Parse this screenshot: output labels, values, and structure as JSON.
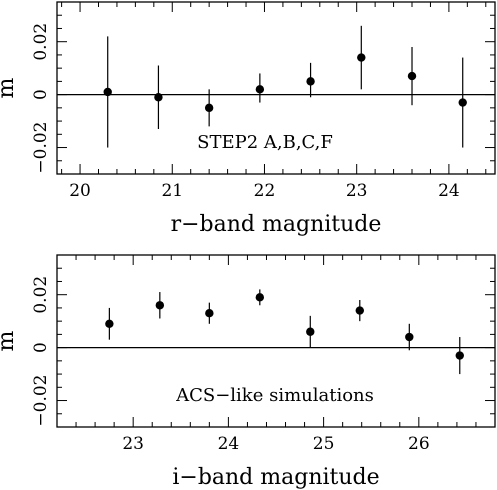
{
  "chart_data": [
    {
      "type": "scatter",
      "annotation": "STEP2 A,B,C,F",
      "xlabel": "r−band magnitude",
      "ylabel": "m",
      "xlim": [
        19.75,
        24.5
      ],
      "ylim": [
        -0.03,
        0.035
      ],
      "xticks": [
        20,
        21,
        22,
        23,
        24
      ],
      "yticks": [
        -0.02,
        0,
        0.02
      ],
      "ytick_labels": [
        "−0.02",
        "0",
        "0.02"
      ],
      "grid": false,
      "reference_line": 0,
      "points": [
        {
          "x": 20.3,
          "y": 0.001,
          "err_low": -0.02,
          "err_high": 0.022
        },
        {
          "x": 20.85,
          "y": -0.001,
          "err_low": -0.013,
          "err_high": 0.011
        },
        {
          "x": 21.4,
          "y": -0.005,
          "err_low": -0.012,
          "err_high": 0.002
        },
        {
          "x": 21.95,
          "y": 0.002,
          "err_low": -0.003,
          "err_high": 0.008
        },
        {
          "x": 22.5,
          "y": 0.005,
          "err_low": -0.001,
          "err_high": 0.012
        },
        {
          "x": 23.05,
          "y": 0.014,
          "err_low": 0.002,
          "err_high": 0.026
        },
        {
          "x": 23.6,
          "y": 0.007,
          "err_low": -0.004,
          "err_high": 0.018
        },
        {
          "x": 24.15,
          "y": -0.003,
          "err_low": -0.02,
          "err_high": 0.014
        }
      ]
    },
    {
      "type": "scatter",
      "annotation": "ACS−like simulations",
      "xlabel": "i−band magnitude",
      "ylabel": "m",
      "xlim": [
        22.2,
        26.8
      ],
      "ylim": [
        -0.03,
        0.035
      ],
      "xticks": [
        23,
        24,
        25,
        26
      ],
      "yticks": [
        -0.02,
        0,
        0.02
      ],
      "ytick_labels": [
        "−0.02",
        "0",
        "0.02"
      ],
      "grid": false,
      "reference_line": 0,
      "points": [
        {
          "x": 22.75,
          "y": 0.009,
          "err_low": 0.003,
          "err_high": 0.015
        },
        {
          "x": 23.28,
          "y": 0.016,
          "err_low": 0.011,
          "err_high": 0.021
        },
        {
          "x": 23.8,
          "y": 0.013,
          "err_low": 0.009,
          "err_high": 0.017
        },
        {
          "x": 24.33,
          "y": 0.019,
          "err_low": 0.016,
          "err_high": 0.022
        },
        {
          "x": 24.86,
          "y": 0.006,
          "err_low": 0.0,
          "err_high": 0.012
        },
        {
          "x": 25.38,
          "y": 0.014,
          "err_low": 0.01,
          "err_high": 0.018
        },
        {
          "x": 25.9,
          "y": 0.004,
          "err_low": -0.001,
          "err_high": 0.009
        },
        {
          "x": 26.43,
          "y": -0.003,
          "err_low": -0.01,
          "err_high": 0.004
        }
      ]
    }
  ]
}
